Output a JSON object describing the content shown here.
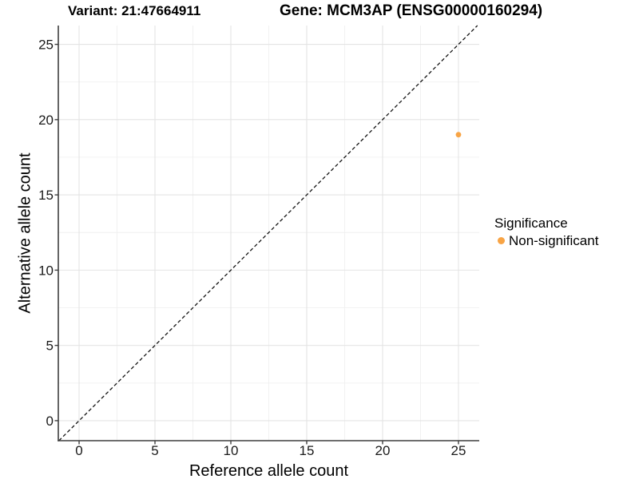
{
  "chart_data": {
    "type": "scatter",
    "titles": {
      "variant": "Variant: 21:47664911",
      "gene": "Gene: MCM3AP (ENSG00000160294)"
    },
    "xlabel": "Reference allele count",
    "ylabel": "Alternative allele count",
    "xlim": [
      -1.37,
      26.37
    ],
    "ylim": [
      -1.33,
      26.25
    ],
    "xticks": [
      0,
      5,
      10,
      15,
      20,
      25
    ],
    "yticks": [
      0,
      5,
      10,
      15,
      20,
      25
    ],
    "grid": "major+minor",
    "legend_position": "right",
    "legend": {
      "title": "Significance",
      "items": [
        {
          "label": "Non-significant",
          "color": "#F8A445"
        }
      ]
    },
    "series": [
      {
        "name": "Non-significant",
        "color": "#F8A445",
        "points": [
          {
            "x": 25,
            "y": 19
          }
        ]
      }
    ],
    "reference_line": {
      "kind": "identity",
      "slope": 1,
      "intercept": 0,
      "style": "dashed",
      "color": "#141414"
    }
  },
  "style_colors": {
    "grid_major": "#E4E4E4",
    "grid_minor": "#F0F0F0",
    "axis_line": "#3F3F3F",
    "tick_label": "#1A1A1A"
  }
}
